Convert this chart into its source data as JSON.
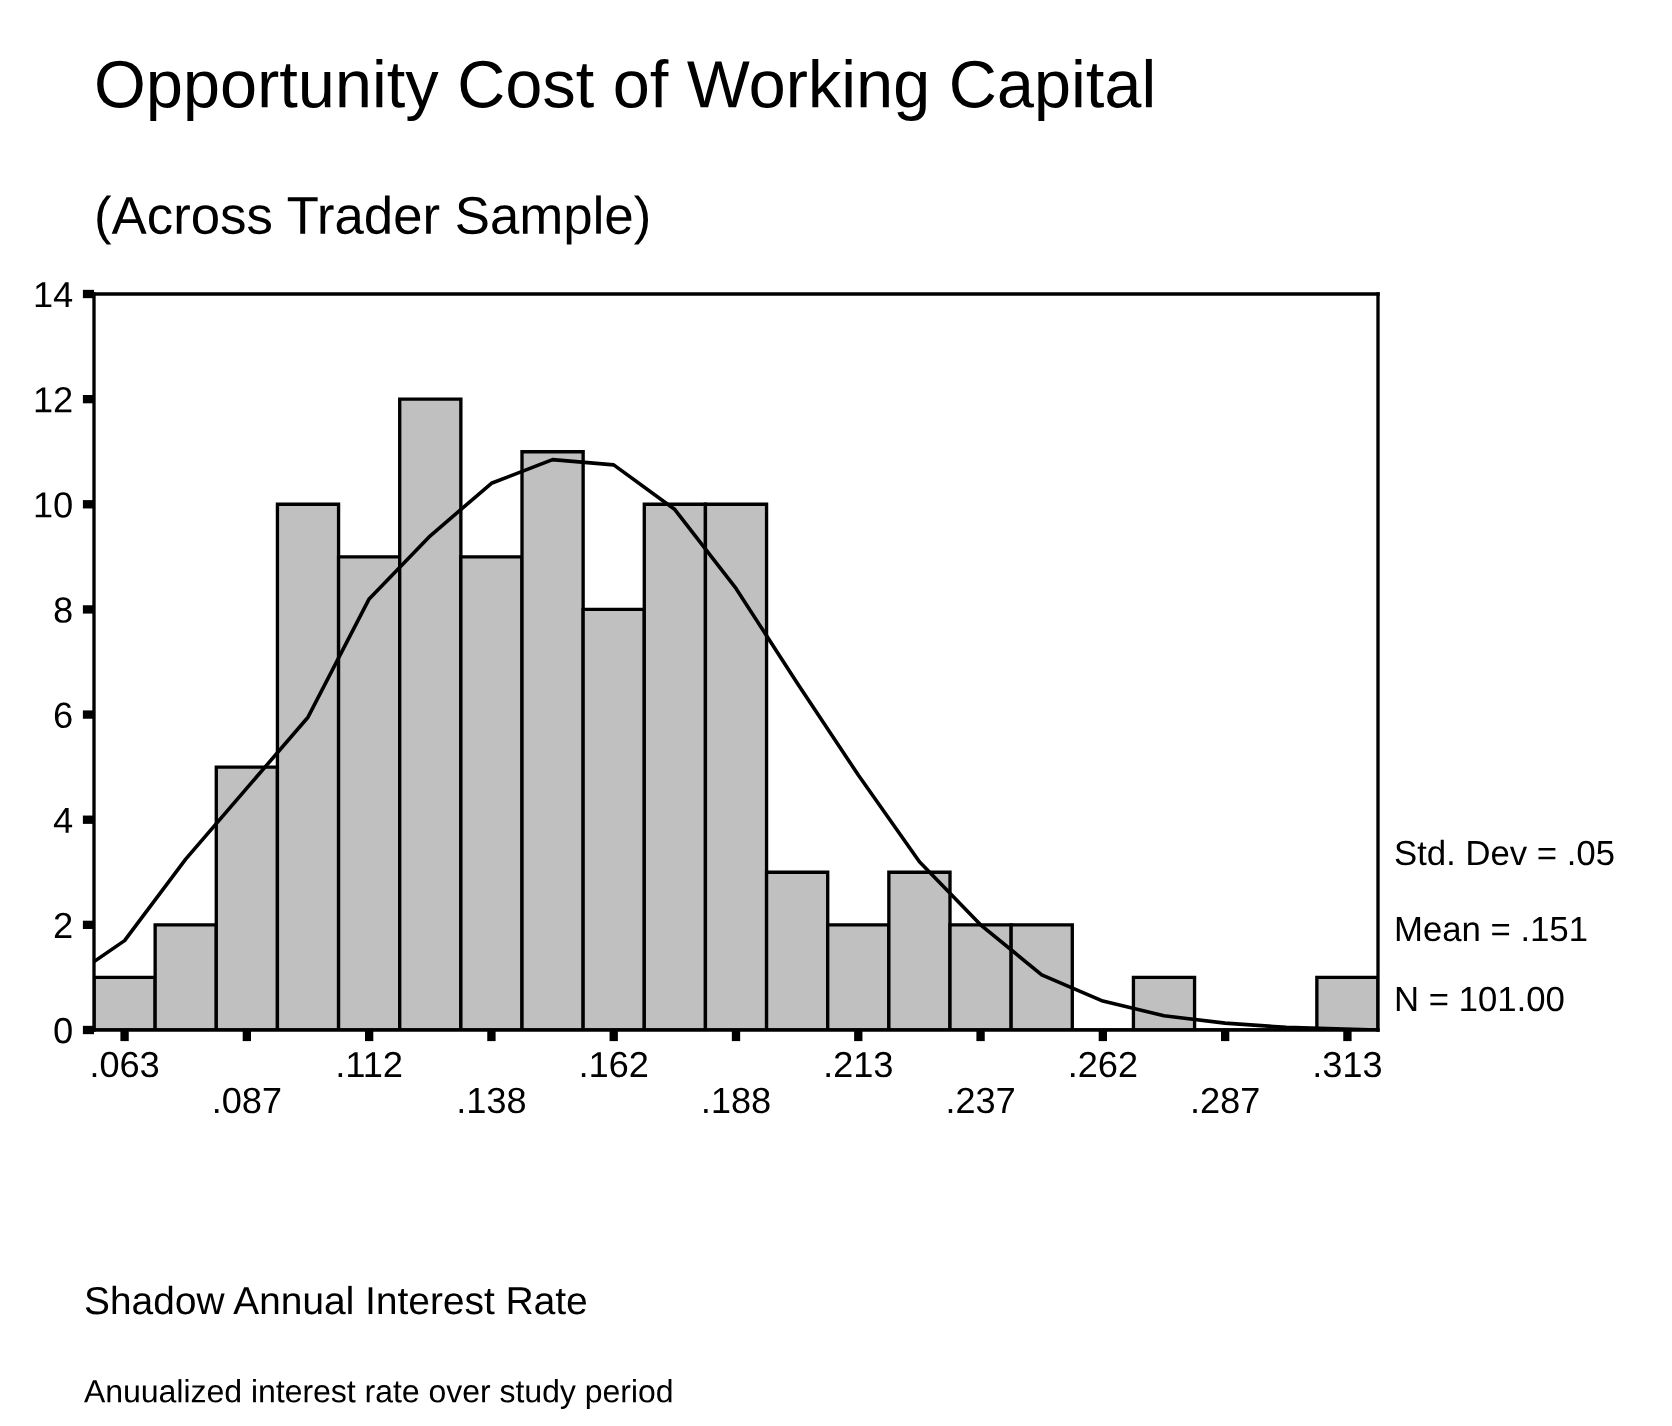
{
  "chart_data": {
    "type": "histogram",
    "title": "Opportunity Cost of Working Capital",
    "subtitle": "(Across Trader Sample)",
    "bins": [
      0.05625,
      0.06875,
      0.08125,
      0.09375,
      0.10625,
      0.11875,
      0.13125,
      0.14375,
      0.15625,
      0.16875,
      0.18125,
      0.19375,
      0.20625,
      0.21875,
      0.23125,
      0.24375,
      0.25625,
      0.26875,
      0.28125,
      0.29375,
      0.30625,
      0.31875
    ],
    "values": [
      1,
      2,
      5,
      10,
      9,
      12,
      9,
      11,
      8,
      10,
      10,
      3,
      2,
      3,
      2,
      2,
      0,
      1,
      0,
      0,
      1
    ],
    "color": "#c0c0c0",
    "series": [
      {
        "type": "line",
        "color": "#000000",
        "x": [
          0.05625,
          0.0625,
          0.075,
          0.0875,
          0.1,
          0.1125,
          0.125,
          0.1375,
          0.15,
          0.1625,
          0.175,
          0.1875,
          0.2,
          0.2125,
          0.225,
          0.2375,
          0.25,
          0.2625,
          0.275,
          0.2875,
          0.3,
          0.31875
        ],
        "values": [
          1.3,
          1.7,
          3.25,
          4.6,
          5.95,
          8.2,
          9.4,
          10.4,
          10.85,
          10.75,
          9.9,
          8.4,
          6.6,
          4.85,
          3.2,
          2.0,
          1.05,
          0.55,
          0.27,
          0.13,
          0.05,
          0.0
        ]
      }
    ],
    "xlim": [
      0.05625,
      0.31875
    ],
    "ylim": [
      0,
      14
    ],
    "xticks": [
      {
        "value": 0.0625,
        "label": ".063"
      },
      {
        "value": 0.0875,
        "label": null
      },
      {
        "value": 0.1125,
        "label": ".112"
      },
      {
        "value": 0.1375,
        "label": null
      },
      {
        "value": 0.1625,
        "label": ".162"
      },
      {
        "value": 0.1875,
        "label": null
      },
      {
        "value": 0.2125,
        "label": ".213"
      },
      {
        "value": 0.2375,
        "label": null
      },
      {
        "value": 0.2625,
        "label": ".262"
      },
      {
        "value": 0.2875,
        "label": null
      },
      {
        "value": 0.3125,
        "label": ".313"
      }
    ],
    "yticks": [
      0,
      2,
      4,
      6,
      8,
      10,
      12,
      14
    ],
    "grid": false,
    "legend": false,
    "annotations": [
      ".087",
      ".138",
      ".188",
      ".237",
      ".287",
      "Std. Dev = .05",
      "Mean = .151",
      "N = 101.00",
      "Shadow Annual Interest Rate",
      "Anuualized interest rate over study period"
    ]
  }
}
